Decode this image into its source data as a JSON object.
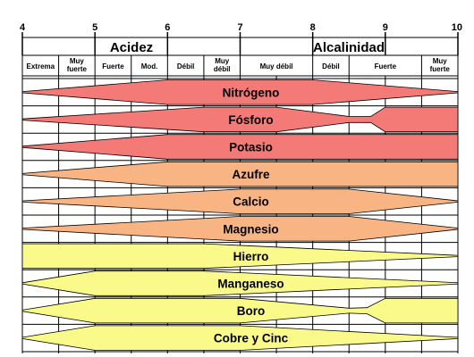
{
  "scale": {
    "ticks": [
      "4",
      "5",
      "6",
      "7",
      "8",
      "9",
      "10"
    ],
    "acid_label": "Acidez",
    "alkaline_label": "Alcalinidad",
    "sub_labels": [
      {
        "text": "Extrema",
        "from": 4.0,
        "to": 4.5
      },
      {
        "text": "Muy fuerte",
        "from": 4.5,
        "to": 5.0
      },
      {
        "text": "Fuerte",
        "from": 5.0,
        "to": 5.5
      },
      {
        "text": "Mod.",
        "from": 5.5,
        "to": 6.0
      },
      {
        "text": "Débil",
        "from": 6.0,
        "to": 6.5
      },
      {
        "text": "Muy débil",
        "from": 6.5,
        "to": 7.0
      },
      {
        "text": "Muy débil",
        "from": 7.0,
        "to": 8.0
      },
      {
        "text": "Débil",
        "from": 8.0,
        "to": 8.5
      },
      {
        "text": "Fuerte",
        "from": 8.5,
        "to": 9.5
      },
      {
        "text": "Muy fuerte",
        "from": 9.5,
        "to": 10.0
      }
    ],
    "grid_ph": [
      4.5,
      5.0,
      5.5,
      6.0,
      6.5,
      7.0,
      7.5,
      8.0,
      8.5,
      9.0,
      9.5
    ]
  },
  "colors": {
    "red": "#f47a78",
    "orange": "#f9b483",
    "yellow": "#fafa8a",
    "line": "#000000"
  },
  "nutrients": [
    {
      "name": "Nitrógeno",
      "color": "red",
      "profile": [
        [
          4.0,
          0.05
        ],
        [
          6.0,
          1.0
        ],
        [
          8.0,
          1.0
        ],
        [
          10.0,
          0.05
        ]
      ]
    },
    {
      "name": "Fósforo",
      "color": "red",
      "profile": [
        [
          4.0,
          0.05
        ],
        [
          6.5,
          1.0
        ],
        [
          7.5,
          1.0
        ],
        [
          8.5,
          0.25
        ],
        [
          8.8,
          0.25
        ],
        [
          9.0,
          1.0
        ],
        [
          10.0,
          1.0
        ]
      ]
    },
    {
      "name": "Potasio",
      "color": "red",
      "profile": [
        [
          4.0,
          0.05
        ],
        [
          6.0,
          1.0
        ],
        [
          10.0,
          1.0
        ]
      ]
    },
    {
      "name": "Azufre",
      "color": "orange",
      "profile": [
        [
          4.0,
          0.05
        ],
        [
          6.0,
          1.0
        ],
        [
          10.0,
          1.0
        ]
      ]
    },
    {
      "name": "Calcio",
      "color": "orange",
      "profile": [
        [
          4.0,
          0.05
        ],
        [
          7.0,
          1.0
        ],
        [
          8.5,
          1.0
        ],
        [
          10.0,
          0.05
        ]
      ]
    },
    {
      "name": "Magnesio",
      "color": "orange",
      "profile": [
        [
          4.0,
          0.05
        ],
        [
          7.0,
          1.0
        ],
        [
          8.5,
          1.0
        ],
        [
          10.0,
          0.05
        ]
      ]
    },
    {
      "name": "Hierro",
      "color": "yellow",
      "profile": [
        [
          4.0,
          1.0
        ],
        [
          6.5,
          1.0
        ],
        [
          10.0,
          0.05
        ]
      ]
    },
    {
      "name": "Manganeso",
      "color": "yellow",
      "profile": [
        [
          4.0,
          0.05
        ],
        [
          5.0,
          1.0
        ],
        [
          6.5,
          1.0
        ],
        [
          10.0,
          0.05
        ]
      ]
    },
    {
      "name": "Boro",
      "color": "yellow",
      "profile": [
        [
          4.0,
          0.05
        ],
        [
          5.0,
          1.0
        ],
        [
          7.0,
          1.0
        ],
        [
          8.5,
          0.2
        ],
        [
          8.75,
          0.25
        ],
        [
          9.0,
          1.0
        ],
        [
          10.0,
          1.0
        ]
      ]
    },
    {
      "name": "Cobre y Cinc",
      "color": "yellow",
      "profile": [
        [
          4.0,
          0.05
        ],
        [
          5.0,
          1.0
        ],
        [
          7.0,
          1.0
        ],
        [
          10.0,
          0.05
        ]
      ]
    }
  ]
}
